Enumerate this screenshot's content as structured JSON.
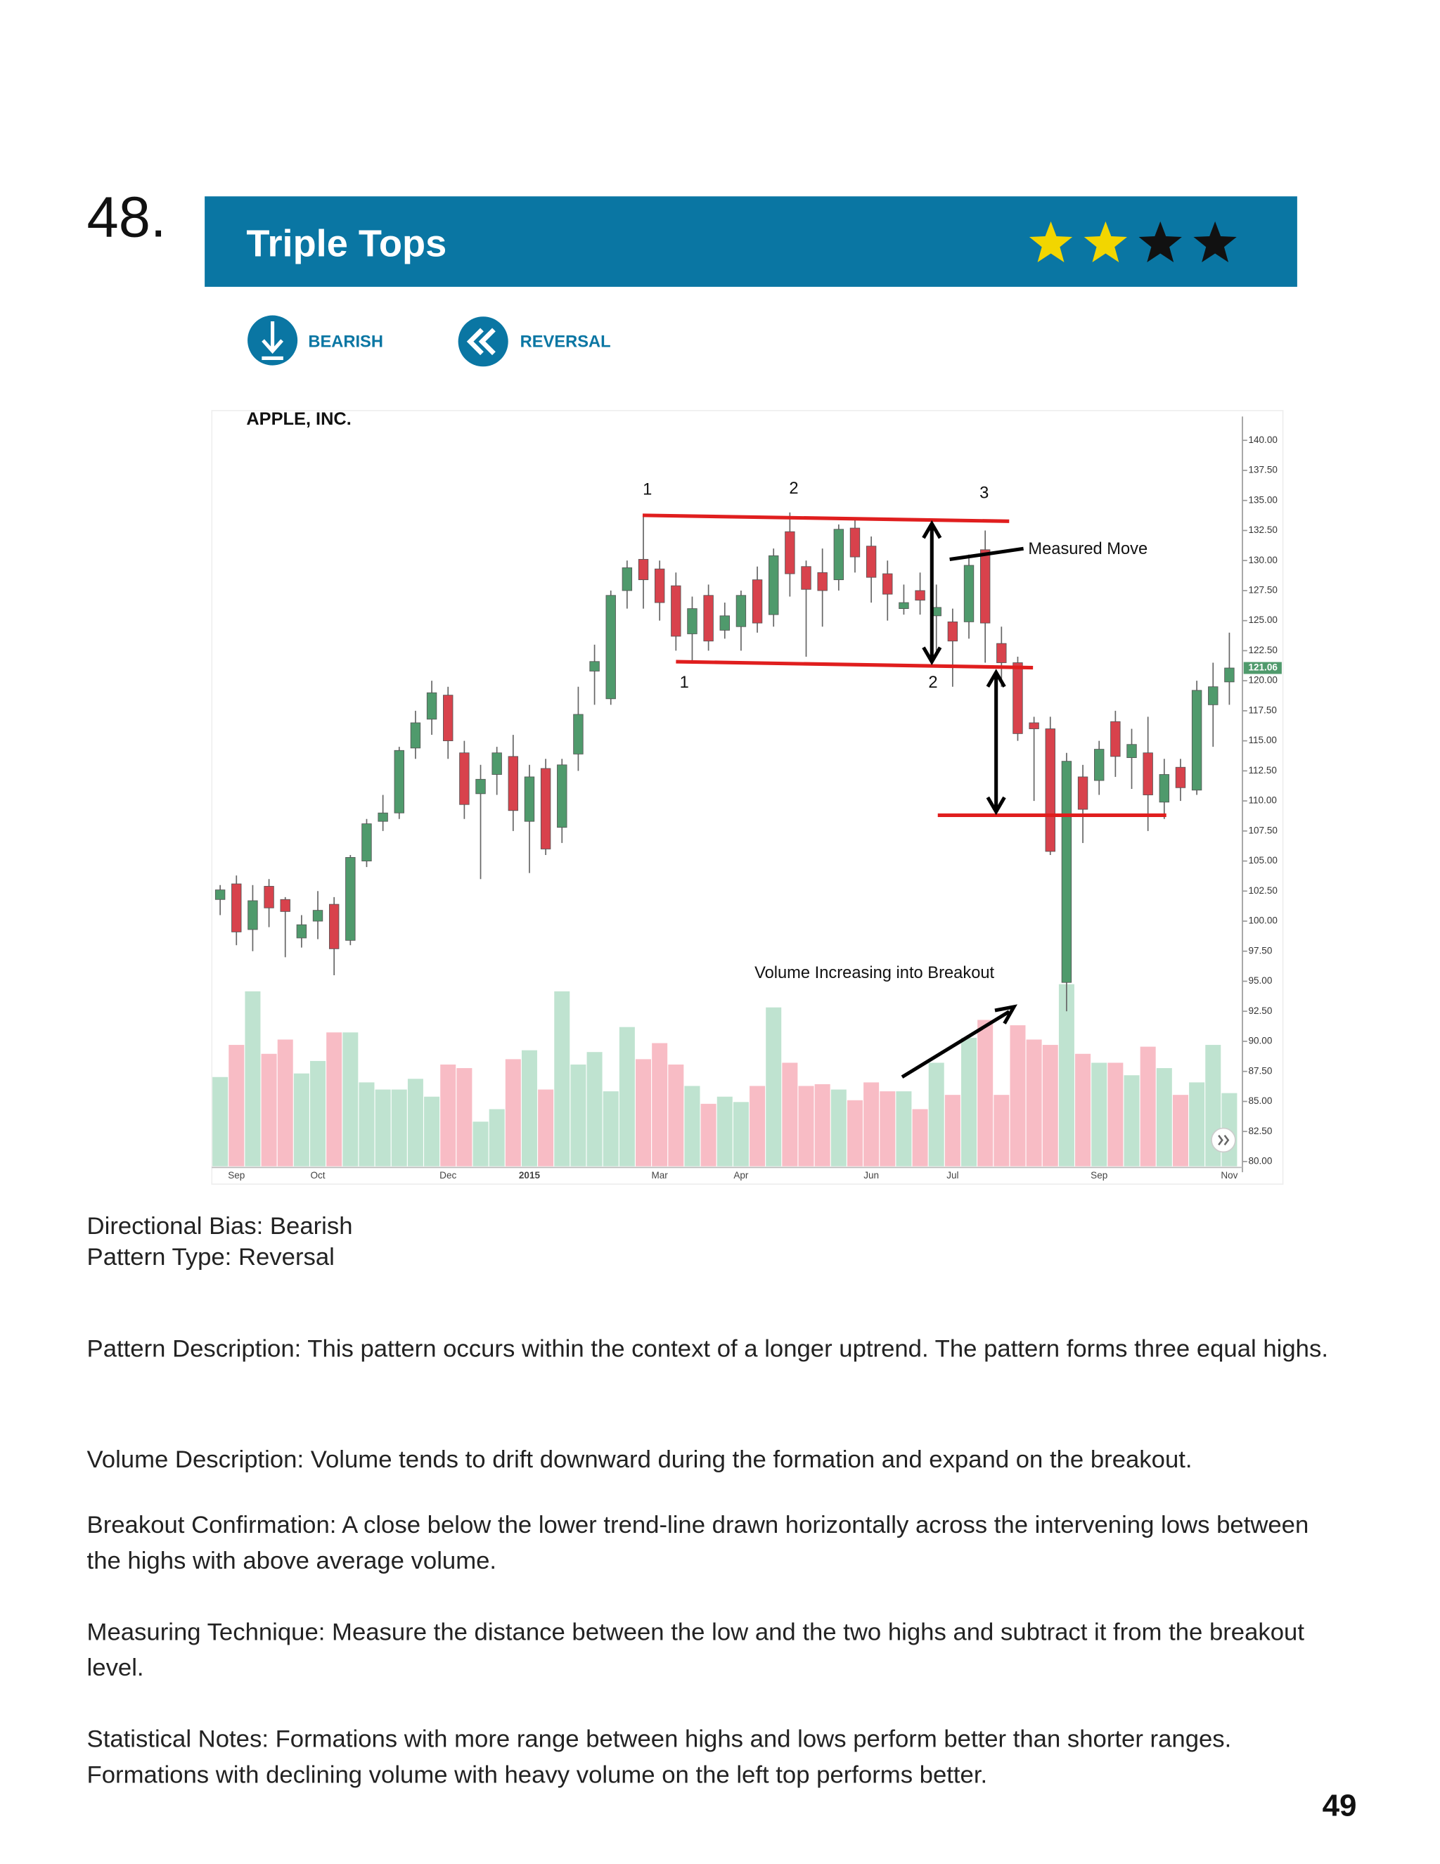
{
  "page_label": "48.",
  "header": {
    "title": "Triple Tops",
    "rating": 2,
    "rating_max": 4,
    "rating_color": "#f2d600",
    "rating_empty_color": "#111111"
  },
  "tags": [
    "BEARISH",
    "REVERSAL"
  ],
  "chart_data": {
    "type": "candlestick",
    "title": "APPLE, INC.",
    "categories": [
      null,
      "Sep",
      null,
      null,
      null,
      null,
      "Oct",
      null,
      null,
      null,
      null,
      null,
      null,
      null,
      "Dec",
      null,
      null,
      null,
      null,
      "2015",
      null,
      null,
      null,
      null,
      null,
      null,
      null,
      "Mar",
      null,
      null,
      null,
      null,
      "Apr",
      null,
      null,
      null,
      null,
      null,
      null,
      null,
      "Jun",
      null,
      null,
      null,
      null,
      "Jul",
      null,
      null,
      null,
      null,
      null,
      null,
      null,
      null,
      "Sep",
      null,
      null,
      null,
      null,
      null,
      null,
      null,
      "Nov"
    ],
    "open": [
      101.8,
      103.1,
      99.3,
      102.9,
      101.8,
      98.6,
      100,
      101.4,
      98.4,
      105,
      108.3,
      109,
      114.4,
      116.8,
      118.8,
      114,
      110.6,
      112.2,
      113.7,
      108.3,
      112.7,
      107.8,
      113.9,
      120.8,
      118.5,
      127.5,
      130.1,
      129.3,
      127.9,
      123.9,
      127.1,
      124.2,
      124.5,
      128.4,
      125.5,
      132.4,
      129.5,
      129,
      128.4,
      132.7,
      131.2,
      128.9,
      126,
      127.5,
      125.4,
      124.9,
      124.9,
      130.9,
      123.1,
      121.5,
      116.5,
      116,
      94.9,
      112,
      111.7,
      116.6,
      113.6,
      114,
      109.9,
      112.8,
      110.9,
      118,
      119.9
    ],
    "high": [
      103,
      103.8,
      103,
      103.5,
      102,
      100.5,
      102.5,
      102,
      105.5,
      108.5,
      110.5,
      114.5,
      117.5,
      120,
      119.5,
      115,
      113,
      114.5,
      115.5,
      113,
      113.5,
      113.5,
      119.5,
      123,
      127.5,
      130,
      133.7,
      130,
      129,
      127,
      128,
      126.5,
      127.5,
      129.5,
      131,
      134,
      130,
      131,
      133,
      133.5,
      132,
      130,
      128,
      129,
      128,
      126,
      130.5,
      132.5,
      124.5,
      122,
      117,
      117,
      114,
      113,
      115,
      117.5,
      116,
      117,
      113.5,
      113.5,
      120,
      121.5,
      124
    ],
    "low": [
      100.5,
      98,
      97.5,
      99.5,
      97,
      97.8,
      98.5,
      95.5,
      98,
      104.5,
      107.5,
      108.5,
      113.5,
      115.5,
      113.5,
      108.5,
      103.5,
      110.5,
      107.5,
      104,
      105.5,
      106.5,
      112.5,
      118,
      118,
      126,
      126,
      125,
      122.5,
      121.5,
      122.5,
      123.5,
      122.5,
      124,
      124.5,
      127,
      122,
      124.5,
      127.5,
      129,
      126.5,
      125,
      125.5,
      125.5,
      122.5,
      119.5,
      123.5,
      121.5,
      119.5,
      115,
      110,
      105.5,
      92.5,
      106.5,
      110.5,
      112,
      111,
      107.5,
      108.5,
      110,
      110.5,
      114.5,
      118
    ],
    "close": [
      102.6,
      99.1,
      101.7,
      101.1,
      100.8,
      99.7,
      100.9,
      97.7,
      105.3,
      108.1,
      109,
      114.2,
      116.5,
      119,
      115,
      109.7,
      111.8,
      114,
      109.2,
      112,
      106,
      113,
      117.2,
      121.6,
      127.1,
      129.4,
      128.4,
      126.5,
      123.7,
      126,
      123.3,
      125.4,
      127.1,
      124.8,
      130.4,
      128.9,
      127.6,
      127.5,
      132.6,
      130.3,
      128.6,
      127.2,
      126.5,
      126.7,
      126.1,
      123.3,
      129.6,
      124.8,
      121.5,
      115.6,
      116,
      105.8,
      113.3,
      109.3,
      114.3,
      113.7,
      114.7,
      110.5,
      112.2,
      111.1,
      119.2,
      119.5,
      121.06
    ],
    "volume": [
      50,
      68,
      98,
      63,
      71,
      52,
      59,
      75,
      75,
      47,
      43,
      43,
      49,
      39,
      57,
      55,
      25,
      32,
      60,
      65,
      43,
      98,
      57,
      64,
      42,
      78,
      60,
      69,
      57,
      45,
      35,
      39,
      36,
      45,
      89,
      58,
      45,
      46,
      43,
      37,
      47,
      42,
      42,
      32,
      58,
      40,
      72,
      82,
      40,
      79,
      71,
      68,
      102,
      63,
      58,
      58,
      51,
      67,
      55,
      40,
      47,
      68,
      41
    ],
    "up_color": "#4f9a6c",
    "down_color": "#d8424c",
    "volume_up_color": "#bfe3d0",
    "volume_down_color": "#f8bcc5",
    "ylim": [
      80,
      140
    ],
    "yticks": [
      {
        "value": 140,
        "label": "140.00"
      },
      {
        "value": 137.5,
        "label": "137.50"
      },
      {
        "value": 135,
        "label": "135.00"
      },
      {
        "value": 132.5,
        "label": "132.50"
      },
      {
        "value": 130,
        "label": "130.00"
      },
      {
        "value": 127.5,
        "label": "127.50"
      },
      {
        "value": 125,
        "label": "125.00"
      },
      {
        "value": 122.5,
        "label": "122.50"
      },
      {
        "value": 120,
        "label": "120.00"
      },
      {
        "value": 117.5,
        "label": "117.50"
      },
      {
        "value": 115,
        "label": "115.00"
      },
      {
        "value": 112.5,
        "label": "112.50"
      },
      {
        "value": 110,
        "label": "110.00"
      },
      {
        "value": 107.5,
        "label": "107.50"
      },
      {
        "value": 105,
        "label": "105.00"
      },
      {
        "value": 102.5,
        "label": "102.50"
      },
      {
        "value": 100,
        "label": "100.00"
      },
      {
        "value": 97.5,
        "label": "97.50"
      },
      {
        "value": 95,
        "label": "95.00"
      },
      {
        "value": 92.5,
        "label": "92.50"
      },
      {
        "value": 90,
        "label": "90.00"
      },
      {
        "value": 87.5,
        "label": "87.50"
      },
      {
        "value": 85,
        "label": "85.00"
      },
      {
        "value": 82.5,
        "label": "82.50"
      },
      {
        "value": 80,
        "label": "80.00"
      }
    ],
    "last_price": 121.06,
    "annotations": [
      "1",
      "2",
      "3",
      "1",
      "2",
      "Measured Move",
      "Volume Increasing into Breakout"
    ]
  },
  "details": {
    "bias": "Directional Bias: Bearish",
    "pattern_type": "Pattern Type: Reversal",
    "sections": [
      "Pattern Description: This pattern occurs within the context of a longer uptrend. The pattern forms three equal highs.",
      "Volume Description: Volume tends to drift downward during the formation and expand on the breakout.",
      "Breakout Confirmation: A close below the lower trend-line drawn horizontally across the intervening lows between the highs with above average volume.",
      "Measuring Technique: Measure the distance between the low and the two highs and subtract it from the breakout level.",
      "Statistical Notes: Formations with more range between highs and lows perform better than shorter ranges. Formations with declining volume with heavy volume on the left top performs better."
    ]
  },
  "page_number": 49
}
